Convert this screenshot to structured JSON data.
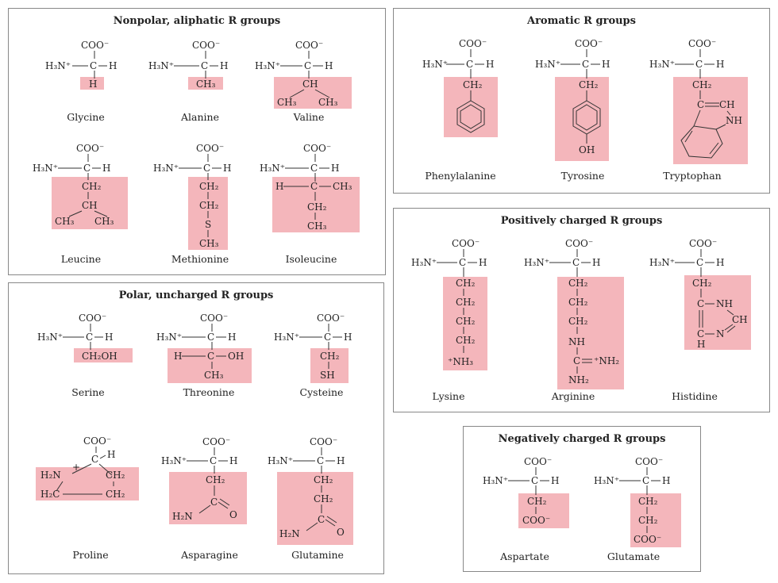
{
  "panels": {
    "nonpolar": {
      "title": "Nonpolar, aliphatic R groups",
      "names": [
        "Glycine",
        "Alanine",
        "Valine",
        "Leucine",
        "Methionine",
        "Isoleucine"
      ]
    },
    "aromatic": {
      "title": "Aromatic R groups",
      "names": [
        "Phenylalanine",
        "Tyrosine",
        "Tryptophan"
      ]
    },
    "polar": {
      "title": "Polar, uncharged R groups",
      "names": [
        "Serine",
        "Threonine",
        "Cysteine",
        "Proline",
        "Asparagine",
        "Glutamine"
      ]
    },
    "positive": {
      "title": "Positively charged R groups",
      "names": [
        "Lysine",
        "Arginine",
        "Histidine"
      ]
    },
    "negative": {
      "title": "Negatively charged R groups",
      "names": [
        "Aspartate",
        "Glutamate"
      ]
    }
  },
  "colors": {
    "r_group_highlight": "#f4b6bb",
    "border": "#888888"
  }
}
